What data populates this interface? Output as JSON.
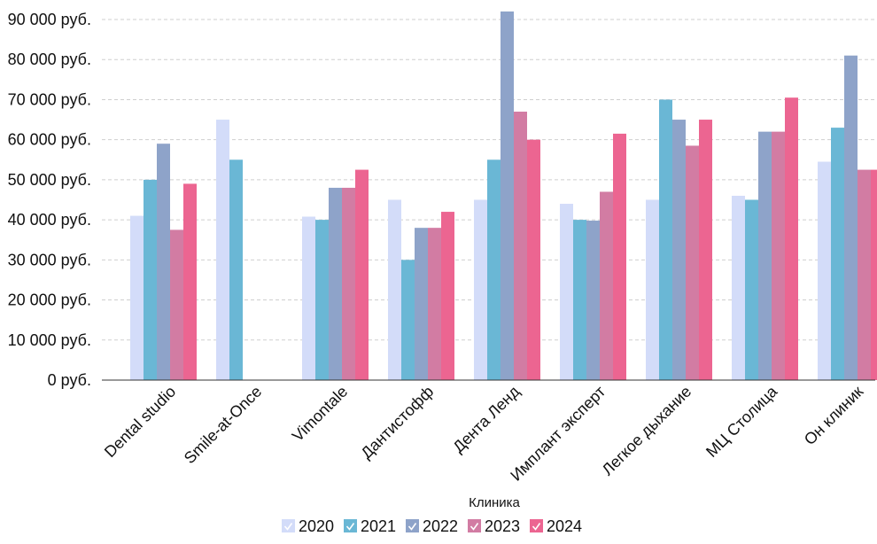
{
  "chart_data": {
    "type": "bar",
    "xlabel": "Клиника",
    "ylabel": "",
    "ylim": [
      0,
      90000
    ],
    "y_tick_values": [
      0,
      10000,
      20000,
      30000,
      40000,
      50000,
      60000,
      70000,
      80000,
      90000
    ],
    "y_tick_labels": [
      "0 руб.",
      "10 000 руб.",
      "20 000 руб.",
      "30 000 руб.",
      "40 000 руб.",
      "50 000 руб.",
      "60 000 руб.",
      "70 000 руб.",
      "80 000 руб.",
      "90 000 руб."
    ],
    "grid": "horizontal dashed",
    "legend_position": "bottom-center",
    "categories": [
      "Dental studio",
      "Smile-at-Once",
      "Vimontale",
      "Дантистофф",
      "Дента Ленд",
      "Имплант эксперт",
      "Легкое дыхание",
      "МЦ Столица",
      "Он клиник"
    ],
    "series": [
      {
        "name": "2020",
        "color": "#d3dcf9",
        "values": [
          41000,
          65000,
          40800,
          45000,
          45000,
          44000,
          45000,
          46000,
          54500
        ]
      },
      {
        "name": "2021",
        "color": "#6ab7d5",
        "values": [
          50000,
          55000,
          40000,
          30000,
          55000,
          40000,
          70000,
          45000,
          63000
        ]
      },
      {
        "name": "2022",
        "color": "#8ea3c9",
        "values": [
          59000,
          null,
          48000,
          38000,
          92000,
          39800,
          65000,
          62000,
          81000
        ]
      },
      {
        "name": "2023",
        "color": "#d27ca3",
        "values": [
          37500,
          null,
          48000,
          38000,
          67000,
          47000,
          58500,
          62000,
          52500
        ]
      },
      {
        "name": "2024",
        "color": "#ec6591",
        "values": [
          49000,
          null,
          52500,
          42000,
          60000,
          61500,
          65000,
          70500,
          52500
        ]
      }
    ]
  }
}
